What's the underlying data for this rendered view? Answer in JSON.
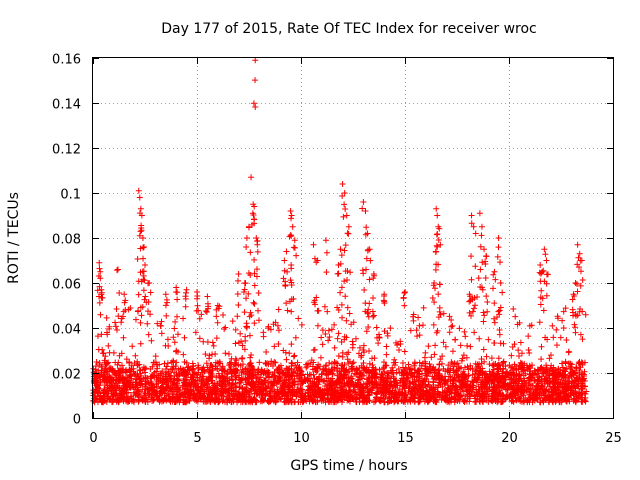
{
  "chart_data": {
    "type": "scatter",
    "title": "Day 177 of 2015, Rate Of TEC Index for receiver wroc",
    "xlabel": "GPS time / hours",
    "ylabel": "ROTI / TECUs",
    "xlim": [
      0,
      25
    ],
    "ylim": [
      0,
      0.16
    ],
    "xticks": [
      0,
      5,
      10,
      15,
      20,
      25
    ],
    "xtick_labels": [
      "0",
      "5",
      "10",
      "15",
      "20",
      "25"
    ],
    "yticks": [
      0,
      0.02,
      0.04,
      0.06,
      0.08,
      0.1,
      0.12,
      0.14,
      0.16
    ],
    "ytick_labels": [
      "0",
      "0.02",
      "0.04",
      "0.06",
      "0.08",
      "0.1",
      "0.12",
      "0.14",
      "0.16"
    ],
    "grid": true,
    "marker": "+",
    "color": "#ff0000",
    "series": [
      {
        "name": "ROTI",
        "x_range": [
          0,
          23.75
        ],
        "typical_range": [
          0.003,
          0.045
        ],
        "peaks": [
          {
            "x": 0.3,
            "y": 0.069
          },
          {
            "x": 0.35,
            "y": 0.065
          },
          {
            "x": 0.4,
            "y": 0.057
          },
          {
            "x": 1.2,
            "y": 0.066
          },
          {
            "x": 1.5,
            "y": 0.055
          },
          {
            "x": 2.2,
            "y": 0.101
          },
          {
            "x": 2.25,
            "y": 0.098
          },
          {
            "x": 2.3,
            "y": 0.093
          },
          {
            "x": 2.35,
            "y": 0.09
          },
          {
            "x": 2.4,
            "y": 0.08
          },
          {
            "x": 2.45,
            "y": 0.076
          },
          {
            "x": 2.5,
            "y": 0.068
          },
          {
            "x": 2.7,
            "y": 0.06
          },
          {
            "x": 3.5,
            "y": 0.055
          },
          {
            "x": 4.0,
            "y": 0.058
          },
          {
            "x": 4.5,
            "y": 0.057
          },
          {
            "x": 5.0,
            "y": 0.056
          },
          {
            "x": 5.5,
            "y": 0.054
          },
          {
            "x": 6.0,
            "y": 0.05
          },
          {
            "x": 7.0,
            "y": 0.064
          },
          {
            "x": 7.3,
            "y": 0.06
          },
          {
            "x": 7.6,
            "y": 0.107
          },
          {
            "x": 7.7,
            "y": 0.095
          },
          {
            "x": 7.75,
            "y": 0.094
          },
          {
            "x": 7.8,
            "y": 0.159
          },
          {
            "x": 7.85,
            "y": 0.08
          },
          {
            "x": 7.9,
            "y": 0.077
          },
          {
            "x": 7.5,
            "y": 0.085
          },
          {
            "x": 7.4,
            "y": 0.08
          },
          {
            "x": 9.5,
            "y": 0.092
          },
          {
            "x": 9.55,
            "y": 0.09
          },
          {
            "x": 9.6,
            "y": 0.085
          },
          {
            "x": 9.7,
            "y": 0.079
          },
          {
            "x": 9.3,
            "y": 0.074
          },
          {
            "x": 9.2,
            "y": 0.07
          },
          {
            "x": 10.6,
            "y": 0.077
          },
          {
            "x": 10.8,
            "y": 0.07
          },
          {
            "x": 11.2,
            "y": 0.079
          },
          {
            "x": 12.0,
            "y": 0.104
          },
          {
            "x": 12.1,
            "y": 0.1
          },
          {
            "x": 12.2,
            "y": 0.09
          },
          {
            "x": 12.3,
            "y": 0.085
          },
          {
            "x": 11.9,
            "y": 0.075
          },
          {
            "x": 11.8,
            "y": 0.068
          },
          {
            "x": 13.0,
            "y": 0.096
          },
          {
            "x": 13.1,
            "y": 0.092
          },
          {
            "x": 13.2,
            "y": 0.082
          },
          {
            "x": 13.3,
            "y": 0.075
          },
          {
            "x": 13.5,
            "y": 0.064
          },
          {
            "x": 14.0,
            "y": 0.055
          },
          {
            "x": 15.0,
            "y": 0.056
          },
          {
            "x": 16.5,
            "y": 0.093
          },
          {
            "x": 16.55,
            "y": 0.09
          },
          {
            "x": 16.6,
            "y": 0.085
          },
          {
            "x": 16.7,
            "y": 0.077
          },
          {
            "x": 16.4,
            "y": 0.06
          },
          {
            "x": 18.2,
            "y": 0.09
          },
          {
            "x": 18.3,
            "y": 0.085
          },
          {
            "x": 18.4,
            "y": 0.082
          },
          {
            "x": 18.6,
            "y": 0.091
          },
          {
            "x": 18.7,
            "y": 0.085
          },
          {
            "x": 18.8,
            "y": 0.075
          },
          {
            "x": 18.9,
            "y": 0.072
          },
          {
            "x": 18.1,
            "y": 0.055
          },
          {
            "x": 19.3,
            "y": 0.065
          },
          {
            "x": 19.5,
            "y": 0.08
          },
          {
            "x": 19.6,
            "y": 0.06
          },
          {
            "x": 21.7,
            "y": 0.075
          },
          {
            "x": 21.8,
            "y": 0.07
          },
          {
            "x": 21.5,
            "y": 0.068
          },
          {
            "x": 21.6,
            "y": 0.065
          },
          {
            "x": 23.3,
            "y": 0.077
          },
          {
            "x": 23.4,
            "y": 0.073
          },
          {
            "x": 23.5,
            "y": 0.07
          },
          {
            "x": 23.2,
            "y": 0.06
          },
          {
            "x": 23.1,
            "y": 0.055
          }
        ]
      }
    ]
  }
}
